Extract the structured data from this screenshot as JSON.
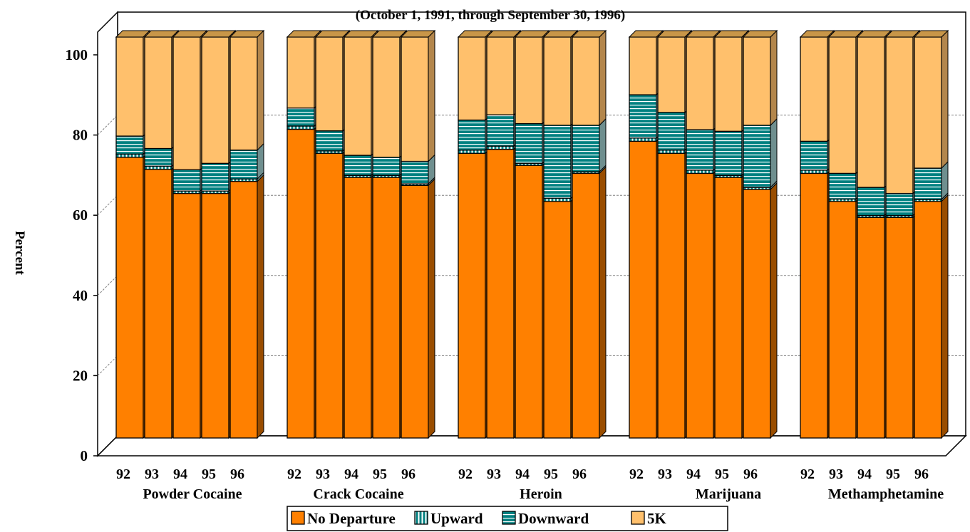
{
  "chart_data": {
    "type": "bar",
    "stacked": true,
    "title": "(October 1, 1991, through September 30, 1996)",
    "ylabel": "Percent",
    "xlabel": "",
    "ylim": [
      0,
      100
    ],
    "yticks": [
      "0",
      "20",
      "40",
      "60",
      "80",
      "100"
    ],
    "grid": true,
    "legend_position": "bottom",
    "groups": [
      {
        "name": "Powder Cocaine",
        "years": [
          "92",
          "93",
          "94",
          "95",
          "96"
        ],
        "no_departure": [
          70,
          67,
          61,
          61,
          64
        ],
        "upward": [
          0.8,
          0.8,
          0.6,
          0.6,
          0.6
        ],
        "downward": [
          4.5,
          4.4,
          5.3,
          6.9,
          7.2
        ],
        "fivek": [
          24.7,
          27.8,
          33.1,
          31.5,
          28.2
        ]
      },
      {
        "name": "Crack Cocaine",
        "years": [
          "92",
          "93",
          "94",
          "95",
          "96"
        ],
        "no_departure": [
          77,
          71,
          65,
          65,
          63
        ],
        "upward": [
          0.8,
          0.6,
          0.5,
          0.5,
          0.4
        ],
        "downward": [
          4.5,
          5.0,
          5.0,
          4.5,
          5.6
        ],
        "fivek": [
          17.7,
          23.4,
          29.5,
          30.0,
          31.0
        ]
      },
      {
        "name": "Heroin",
        "years": [
          "92",
          "93",
          "94",
          "95",
          "96"
        ],
        "no_departure": [
          71,
          72,
          68,
          59,
          66
        ],
        "upward": [
          0.8,
          0.8,
          0.5,
          0.8,
          0.4
        ],
        "downward": [
          7.5,
          7.8,
          9.9,
          18.2,
          11.6
        ],
        "fivek": [
          20.7,
          19.4,
          21.6,
          22.0,
          22.0
        ]
      },
      {
        "name": "Marijuana",
        "years": [
          "92",
          "93",
          "94",
          "95",
          "96"
        ],
        "no_departure": [
          74,
          71,
          66,
          65,
          62
        ],
        "upward": [
          0.8,
          0.8,
          0.8,
          0.5,
          0.5
        ],
        "downward": [
          10.8,
          9.4,
          10.1,
          11.0,
          15.5
        ],
        "fivek": [
          14.4,
          18.8,
          23.1,
          23.5,
          22.0
        ]
      },
      {
        "name": "Methamphetamine",
        "years": [
          "92",
          "93",
          "94",
          "95",
          "96"
        ],
        "no_departure": [
          66,
          59,
          55,
          55,
          59
        ],
        "upward": [
          0.8,
          0.6,
          0.5,
          0.5,
          0.5
        ],
        "downward": [
          7.2,
          6.4,
          7.0,
          5.5,
          7.8
        ],
        "fivek": [
          26.0,
          34.0,
          37.5,
          39.0,
          32.7
        ]
      }
    ],
    "legend": [
      {
        "key": "no_departure",
        "label": "No Departure",
        "color": "#ff8000"
      },
      {
        "key": "upward",
        "label": "Upward",
        "color": "#008080"
      },
      {
        "key": "downward",
        "label": "Downward",
        "color": "#008080"
      },
      {
        "key": "fivek",
        "label": "5K",
        "color": "#ffc06c"
      }
    ],
    "colors": {
      "no_departure": "#ff8000",
      "upward": "#008080",
      "downward": "#008080",
      "fivek": "#ffc06c",
      "grid": "#808080"
    }
  }
}
